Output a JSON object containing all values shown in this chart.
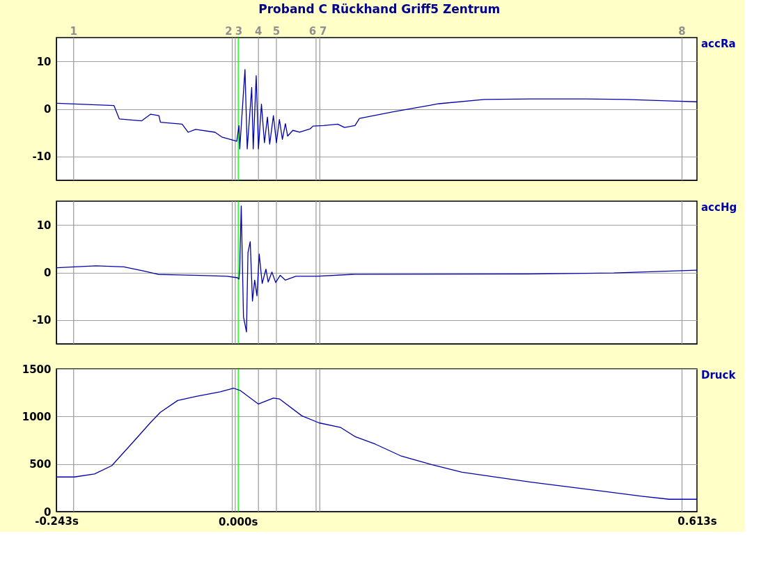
{
  "chart_data": [
    {
      "type": "line",
      "title": "Proband C Rückhand Griff5 Zentrum",
      "xlim": [
        -0.243,
        0.613
      ],
      "ylim": [
        -15,
        15
      ],
      "yticks": [
        -10,
        0,
        10
      ],
      "grid": "y",
      "legend": false,
      "tick_labels": "y",
      "series": [
        {
          "name": "accRa",
          "color": "#0000aa",
          "x": [
            -0.242,
            -0.166,
            -0.159,
            -0.129,
            -0.117,
            -0.106,
            -0.104,
            -0.075,
            -0.067,
            -0.057,
            -0.031,
            -0.022,
            -0.002,
            0.001,
            0.002,
            0.009,
            0.012,
            0.018,
            0.02,
            0.024,
            0.027,
            0.031,
            0.035,
            0.039,
            0.042,
            0.047,
            0.051,
            0.055,
            0.059,
            0.063,
            0.066,
            0.073,
            0.082,
            0.096,
            0.1,
            0.114,
            0.133,
            0.142,
            0.156,
            0.162,
            0.207,
            0.257,
            0.268,
            0.329,
            0.391,
            0.465,
            0.518,
            0.573,
            0.613
          ],
          "values": [
            1.2,
            0.7,
            -2.1,
            -2.5,
            -1.1,
            -1.4,
            -2.8,
            -3.2,
            -4.9,
            -4.3,
            -4.9,
            -5.9,
            -6.8,
            -3.5,
            -8.4,
            8.3,
            -8.4,
            4.5,
            -8.4,
            7.0,
            -8.4,
            1.0,
            -7.1,
            -1.7,
            -7.4,
            -1.4,
            -7.1,
            -2.2,
            -6.4,
            -3.1,
            -5.7,
            -4.5,
            -4.9,
            -4.2,
            -3.6,
            -3.5,
            -3.2,
            -3.9,
            -3.5,
            -2.0,
            -0.6,
            0.8,
            1.1,
            2.0,
            2.1,
            2.1,
            2.0,
            1.7,
            1.5
          ]
        }
      ],
      "ref_lines": [
        {
          "axis": "x",
          "value": -0.22,
          "color": "#a0a0a0"
        },
        {
          "axis": "x",
          "value": -0.008,
          "color": "#a0a0a0"
        },
        {
          "axis": "x",
          "value": -0.004,
          "color": "#a0a0a0"
        },
        {
          "axis": "x",
          "value": 0.027,
          "color": "#a0a0a0"
        },
        {
          "axis": "x",
          "value": 0.051,
          "color": "#a0a0a0"
        },
        {
          "axis": "x",
          "value": 0.104,
          "color": "#a0a0a0"
        },
        {
          "axis": "x",
          "value": 0.109,
          "color": "#a0a0a0"
        },
        {
          "axis": "x",
          "value": 0.593,
          "color": "#a0a0a0"
        },
        {
          "axis": "x",
          "value": 0.0,
          "color": "#00ff00"
        }
      ],
      "annotations": [
        "1",
        "2",
        "3",
        "4",
        "5",
        "6",
        "7",
        "8"
      ]
    },
    {
      "type": "line",
      "xlim": [
        -0.243,
        0.613
      ],
      "ylim": [
        -15,
        15
      ],
      "yticks": [
        -10,
        0,
        10
      ],
      "grid": "y",
      "legend": false,
      "tick_labels": "y",
      "series": [
        {
          "name": "accHg",
          "color": "#0000aa",
          "x": [
            -0.242,
            -0.19,
            -0.153,
            -0.126,
            -0.107,
            -0.052,
            -0.015,
            -0.001,
            0.001,
            0.002,
            0.004,
            0.007,
            0.011,
            0.013,
            0.016,
            0.019,
            0.022,
            0.025,
            0.028,
            0.032,
            0.037,
            0.04,
            0.045,
            0.05,
            0.056,
            0.063,
            0.077,
            0.105,
            0.151,
            0.391,
            0.502,
            0.613
          ],
          "values": [
            1.0,
            1.4,
            1.2,
            0.3,
            -0.4,
            -0.6,
            -0.8,
            -1.1,
            -1.4,
            0.7,
            14.0,
            -9.3,
            -12.5,
            4.2,
            6.5,
            -6.0,
            -1.6,
            -4.9,
            3.9,
            -2.3,
            0.7,
            -2.0,
            0.1,
            -2.1,
            -0.6,
            -1.6,
            -0.8,
            -0.8,
            -0.4,
            -0.3,
            -0.1,
            0.5
          ]
        }
      ],
      "ref_lines": [
        {
          "axis": "x",
          "value": -0.22,
          "color": "#a0a0a0"
        },
        {
          "axis": "x",
          "value": -0.008,
          "color": "#a0a0a0"
        },
        {
          "axis": "x",
          "value": -0.004,
          "color": "#a0a0a0"
        },
        {
          "axis": "x",
          "value": 0.027,
          "color": "#a0a0a0"
        },
        {
          "axis": "x",
          "value": 0.051,
          "color": "#a0a0a0"
        },
        {
          "axis": "x",
          "value": 0.104,
          "color": "#a0a0a0"
        },
        {
          "axis": "x",
          "value": 0.109,
          "color": "#a0a0a0"
        },
        {
          "axis": "x",
          "value": 0.593,
          "color": "#a0a0a0"
        },
        {
          "axis": "x",
          "value": 0.0,
          "color": "#00ff00"
        }
      ]
    },
    {
      "type": "line",
      "xlim": [
        -0.243,
        0.613
      ],
      "xticks": [
        {
          "value": -0.243,
          "label": "-0.243s"
        },
        {
          "value": 0.613,
          "label": "0.613s"
        }
      ],
      "ylim": [
        0,
        1500
      ],
      "yticks": [
        0,
        500,
        1000,
        1500
      ],
      "grid": "y",
      "legend": false,
      "series": [
        {
          "name": "Druck",
          "color": "#0000aa",
          "x": [
            -0.242,
            -0.219,
            -0.192,
            -0.169,
            -0.14,
            -0.117,
            -0.104,
            -0.081,
            -0.057,
            -0.024,
            -0.006,
            0.003,
            0.027,
            0.047,
            0.055,
            0.085,
            0.108,
            0.137,
            0.157,
            0.183,
            0.217,
            0.259,
            0.299,
            0.391,
            0.483,
            0.539,
            0.576,
            0.613
          ],
          "values": [
            364,
            364,
            396,
            483,
            735,
            938,
            1044,
            1168,
            1210,
            1260,
            1297,
            1272,
            1131,
            1193,
            1185,
            1007,
            933,
            884,
            785,
            710,
            587,
            493,
            415,
            310,
            218,
            162,
            130,
            130
          ]
        }
      ],
      "ref_lines": [
        {
          "axis": "x",
          "value": -0.22,
          "color": "#a0a0a0"
        },
        {
          "axis": "x",
          "value": -0.008,
          "color": "#a0a0a0"
        },
        {
          "axis": "x",
          "value": -0.004,
          "color": "#a0a0a0"
        },
        {
          "axis": "x",
          "value": 0.027,
          "color": "#a0a0a0"
        },
        {
          "axis": "x",
          "value": 0.051,
          "color": "#a0a0a0"
        },
        {
          "axis": "x",
          "value": 0.104,
          "color": "#a0a0a0"
        },
        {
          "axis": "x",
          "value": 0.109,
          "color": "#a0a0a0"
        },
        {
          "axis": "x",
          "value": 0.593,
          "color": "#a0a0a0"
        },
        {
          "axis": "x",
          "value": 0.0,
          "label": "0.000s",
          "color": "#00ff00"
        }
      ]
    }
  ]
}
